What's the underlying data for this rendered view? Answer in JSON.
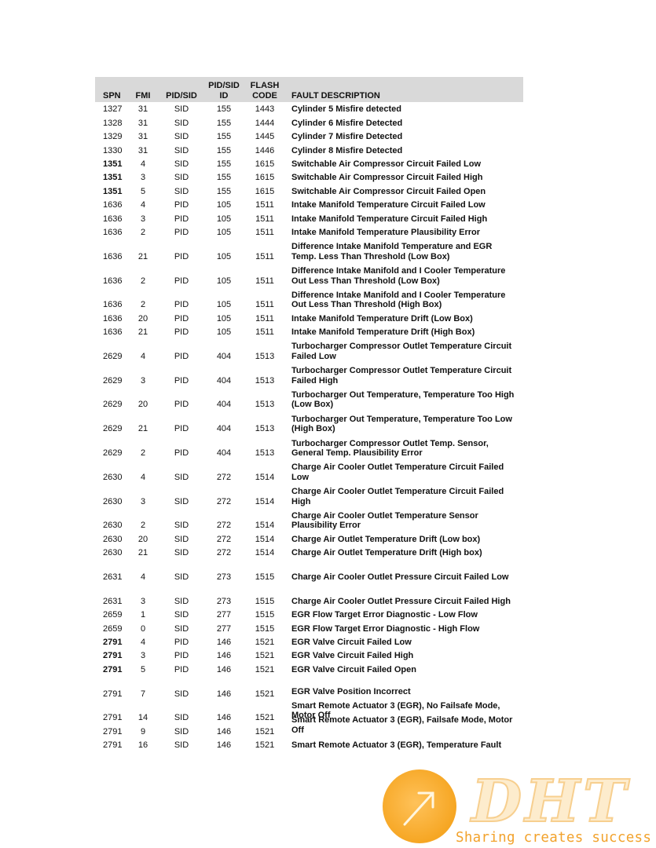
{
  "header": {
    "spn": "SPN",
    "fmi": "FMI",
    "type": "PID/SID",
    "id": "PID/SID\nID",
    "code": "FLASH\nCODE",
    "desc": "FAULT DESCRIPTION"
  },
  "rows": [
    {
      "spn": "1327",
      "fmi": "31",
      "type": "SID",
      "id": "155",
      "code": "1443",
      "desc": "Cylinder 5 Misfire detected",
      "spn_bold": false
    },
    {
      "spn": "1328",
      "fmi": "31",
      "type": "SID",
      "id": "155",
      "code": "1444",
      "desc": "Cylinder 6 Misfire Detected",
      "spn_bold": false
    },
    {
      "spn": "1329",
      "fmi": "31",
      "type": "SID",
      "id": "155",
      "code": "1445",
      "desc": "Cylinder 7 Misfire Detected",
      "spn_bold": false
    },
    {
      "spn": "1330",
      "fmi": "31",
      "type": "SID",
      "id": "155",
      "code": "1446",
      "desc": "Cylinder 8 Misfire Detected",
      "spn_bold": false
    },
    {
      "spn": "1351",
      "fmi": "4",
      "type": "SID",
      "id": "155",
      "code": "1615",
      "desc": "Switchable Air Compressor Circuit Failed Low",
      "spn_bold": true
    },
    {
      "spn": "1351",
      "fmi": "3",
      "type": "SID",
      "id": "155",
      "code": "1615",
      "desc": "Switchable Air Compressor Circuit Failed High",
      "spn_bold": true
    },
    {
      "spn": "1351",
      "fmi": "5",
      "type": "SID",
      "id": "155",
      "code": "1615",
      "desc": "Switchable Air Compressor Circuit Failed Open",
      "spn_bold": true
    },
    {
      "spn": "1636",
      "fmi": "4",
      "type": "PID",
      "id": "105",
      "code": "1511",
      "desc": "Intake Manifold Temperature Circuit Failed Low",
      "spn_bold": false
    },
    {
      "spn": "1636",
      "fmi": "3",
      "type": "PID",
      "id": "105",
      "code": "1511",
      "desc": "Intake Manifold Temperature Circuit Failed High",
      "spn_bold": false
    },
    {
      "spn": "1636",
      "fmi": "2",
      "type": "PID",
      "id": "105",
      "code": "1511",
      "desc": "Intake Manifold Temperature Plausibility Error",
      "spn_bold": false
    },
    {
      "spn": "1636",
      "fmi": "21",
      "type": "PID",
      "id": "105",
      "code": "1511",
      "desc": "Difference Intake Manifold Temperature and EGR\nTemp. Less Than Threshold (Low Box)",
      "spn_bold": false
    },
    {
      "spn": "1636",
      "fmi": "2",
      "type": "PID",
      "id": "105",
      "code": "1511",
      "desc": "Difference Intake Manifold and I Cooler Temperature\nOut Less Than Threshold (Low Box)",
      "spn_bold": false
    },
    {
      "spn": "1636",
      "fmi": "2",
      "type": "PID",
      "id": "105",
      "code": "1511",
      "desc": "Difference Intake Manifold and I Cooler Temperature\nOut Less Than Threshold (High Box)",
      "spn_bold": false
    },
    {
      "spn": "1636",
      "fmi": "20",
      "type": "PID",
      "id": "105",
      "code": "1511",
      "desc": "Intake Manifold Temperature Drift (Low Box)",
      "spn_bold": false
    },
    {
      "spn": "1636",
      "fmi": "21",
      "type": "PID",
      "id": "105",
      "code": "1511",
      "desc": "Intake Manifold Temperature Drift (High Box)",
      "spn_bold": false
    },
    {
      "spn": "2629",
      "fmi": "4",
      "type": "PID",
      "id": "404",
      "code": "1513",
      "desc": "Turbocharger Compressor Outlet Temperature Circuit\nFailed Low",
      "spn_bold": false
    },
    {
      "spn": "2629",
      "fmi": "3",
      "type": "PID",
      "id": "404",
      "code": "1513",
      "desc": "Turbocharger Compressor Outlet Temperature Circuit\nFailed High",
      "spn_bold": false
    },
    {
      "spn": "2629",
      "fmi": "20",
      "type": "PID",
      "id": "404",
      "code": "1513",
      "desc": "Turbocharger Out Temperature, Temperature Too High\n(Low Box)",
      "spn_bold": false
    },
    {
      "spn": "2629",
      "fmi": "21",
      "type": "PID",
      "id": "404",
      "code": "1513",
      "desc": "Turbocharger Out Temperature, Temperature Too Low\n(High Box)",
      "spn_bold": false
    },
    {
      "spn": "2629",
      "fmi": "2",
      "type": "PID",
      "id": "404",
      "code": "1513",
      "desc": "Turbocharger Compressor Outlet Temp. Sensor,\nGeneral Temp. Plausibility Error",
      "spn_bold": false
    },
    {
      "spn": "2630",
      "fmi": "4",
      "type": "SID",
      "id": "272",
      "code": "1514",
      "desc": "Charge Air Cooler Outlet Temperature Circuit Failed\nLow",
      "spn_bold": false
    },
    {
      "spn": "2630",
      "fmi": "3",
      "type": "SID",
      "id": "272",
      "code": "1514",
      "desc": "Charge Air Cooler Outlet Temperature Circuit Failed\nHigh",
      "spn_bold": false
    },
    {
      "spn": "2630",
      "fmi": "2",
      "type": "SID",
      "id": "272",
      "code": "1514",
      "desc": "Charge Air Cooler Outlet Temperature Sensor\nPlausibility Error",
      "spn_bold": false
    },
    {
      "spn": "2630",
      "fmi": "20",
      "type": "SID",
      "id": "272",
      "code": "1514",
      "desc": "Charge Air Outlet Temperature Drift (Low box)",
      "spn_bold": false
    },
    {
      "spn": "2630",
      "fmi": "21",
      "type": "SID",
      "id": "272",
      "code": "1514",
      "desc": "Charge Air Outlet Temperature Drift (High box)",
      "spn_bold": false
    },
    {
      "spn": "2631",
      "fmi": "4",
      "type": "SID",
      "id": "273",
      "code": "1515",
      "desc": "Charge Air Cooler Outlet Pressure Circuit Failed Low",
      "spn_bold": false
    },
    {
      "spn": "2631",
      "fmi": "3",
      "type": "SID",
      "id": "273",
      "code": "1515",
      "desc": "Charge Air Cooler Outlet Pressure Circuit Failed High",
      "spn_bold": false
    },
    {
      "spn": "2659",
      "fmi": "1",
      "type": "SID",
      "id": "277",
      "code": "1515",
      "desc": "EGR Flow Target Error Diagnostic - Low Flow",
      "spn_bold": false
    },
    {
      "spn": "2659",
      "fmi": "0",
      "type": "SID",
      "id": "277",
      "code": "1515",
      "desc": "EGR Flow Target Error Diagnostic - High Flow",
      "spn_bold": false
    },
    {
      "spn": "2791",
      "fmi": "4",
      "type": "PID",
      "id": "146",
      "code": "1521",
      "desc": "EGR Valve Circuit Failed Low",
      "spn_bold": true
    },
    {
      "spn": "2791",
      "fmi": "3",
      "type": "PID",
      "id": "146",
      "code": "1521",
      "desc": "EGR Valve Circuit Failed High",
      "spn_bold": true
    },
    {
      "spn": "2791",
      "fmi": "5",
      "type": "PID",
      "id": "146",
      "code": "1521",
      "desc": "EGR Valve Circuit Failed Open",
      "spn_bold": true
    },
    {
      "spn": "2791",
      "fmi": "7",
      "type": "SID",
      "id": "146",
      "code": "1521",
      "desc": "EGR Valve Position Incorrect",
      "spn_bold": false
    },
    {
      "spn": "2791",
      "fmi": "14",
      "type": "SID",
      "id": "146",
      "code": "1521",
      "desc": "Smart Remote Actuator 3 (EGR), No Failsafe Mode,\nMotor Off",
      "spn_bold": false
    },
    {
      "spn": "2791",
      "fmi": "9",
      "type": "SID",
      "id": "146",
      "code": "1521",
      "desc": "Smart Remote Actuator 3 (EGR), Failsafe Mode, Motor\nOff",
      "spn_bold": false
    },
    {
      "spn": "2791",
      "fmi": "16",
      "type": "SID",
      "id": "146",
      "code": "1521",
      "desc": "Smart Remote Actuator 3 (EGR), Temperature Fault",
      "spn_bold": false
    }
  ],
  "watermark": {
    "logo": "DHT",
    "slogan": "Sharing creates success",
    "color": "#f2a22c"
  }
}
